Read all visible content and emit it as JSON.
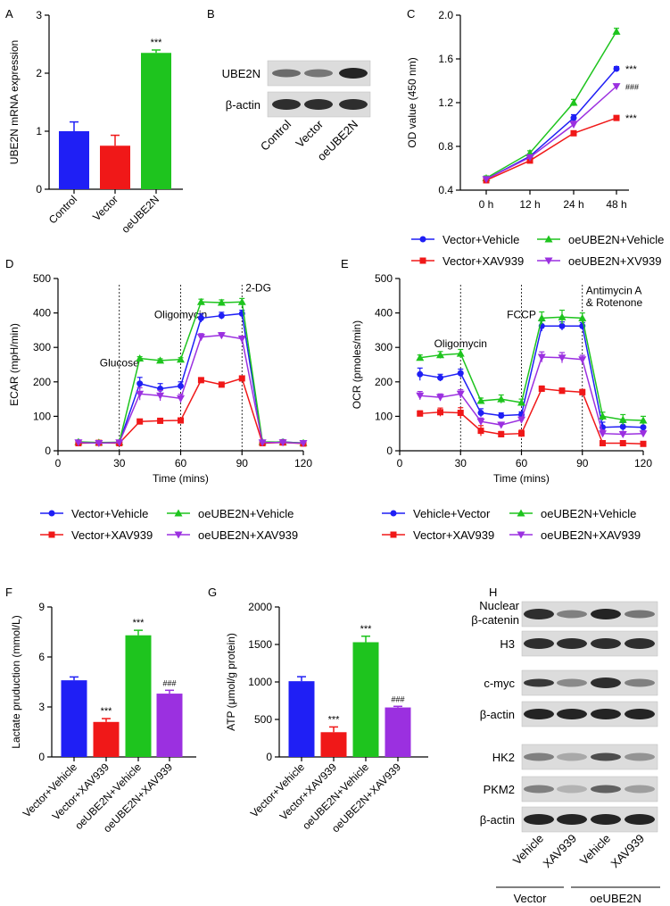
{
  "colors": {
    "blue": "#1f1ff5",
    "red": "#f01818",
    "green": "#1ec41e",
    "purple": "#9b30e0",
    "black": "#000000"
  },
  "panel_labels": {
    "A": "A",
    "B": "B",
    "C": "C",
    "D": "D",
    "E": "E",
    "F": "F",
    "G": "G",
    "H": "H"
  },
  "chart_data": [
    {
      "id": "A",
      "type": "bar",
      "title": "",
      "ylabel": "UBE2N mRNA expression",
      "ylim": [
        0,
        3
      ],
      "yticks": [
        0,
        1,
        2,
        3
      ],
      "categories": [
        "Control",
        "Vector",
        "oeUBE2N"
      ],
      "values": [
        1.0,
        0.75,
        2.35
      ],
      "errors": [
        0.16,
        0.18,
        0.05
      ],
      "colors": [
        "#1f1ff5",
        "#f01818",
        "#1ec41e"
      ],
      "sig": [
        "",
        "",
        "***"
      ]
    },
    {
      "id": "C",
      "type": "line",
      "title": "",
      "ylabel": "OD value (450 nm)",
      "ylim": [
        0.4,
        2.0
      ],
      "yticks": [
        0.4,
        0.8,
        1.2,
        1.6,
        2.0
      ],
      "yticklabels": [
        "0.4",
        "0.8",
        "1.2",
        "1.6",
        "2.0"
      ],
      "categories": [
        "0 h",
        "12 h",
        "24 h",
        "48 h"
      ],
      "series": [
        {
          "name": "Vector+Vehicle",
          "color": "#1f1ff5",
          "marker": "circle",
          "values": [
            0.5,
            0.71,
            1.06,
            1.51
          ],
          "errors": [
            0.02,
            0.02,
            0.03,
            0.02
          ]
        },
        {
          "name": "oeUBE2N+Vehicle",
          "color": "#1ec41e",
          "marker": "triangle-up",
          "values": [
            0.51,
            0.74,
            1.2,
            1.85
          ],
          "errors": [
            0.02,
            0.02,
            0.03,
            0.03
          ]
        },
        {
          "name": "Vector+XAV939",
          "color": "#f01818",
          "marker": "square",
          "values": [
            0.49,
            0.67,
            0.92,
            1.06
          ],
          "errors": [
            0.02,
            0.02,
            0.02,
            0.02
          ]
        },
        {
          "name": "oeUBE2N+XV939",
          "color": "#9b30e0",
          "marker": "triangle-down",
          "values": [
            0.5,
            0.7,
            1.0,
            1.35
          ],
          "errors": [
            0.02,
            0.02,
            0.03,
            0.02
          ]
        }
      ],
      "end_annotations": [
        "***",
        "",
        "***",
        "###"
      ]
    },
    {
      "id": "D",
      "type": "line",
      "title": "",
      "xlabel": "Time (mins)",
      "ylabel": "ECAR (mpH/min)",
      "xlim": [
        0,
        120
      ],
      "xticks": [
        0,
        30,
        60,
        90,
        120
      ],
      "ylim": [
        0,
        500
      ],
      "yticks": [
        0,
        100,
        200,
        300,
        400,
        500
      ],
      "x": [
        10,
        20,
        30,
        40,
        50,
        60,
        70,
        80,
        90,
        100,
        110,
        120
      ],
      "vlines": [
        30,
        60,
        90
      ],
      "annotations": [
        {
          "text": "Glucose",
          "x": 30,
          "y": 245
        },
        {
          "text": "Oligomycin",
          "x": 60,
          "y": 385
        },
        {
          "text": "2-DG",
          "x": 90,
          "y": 462
        }
      ],
      "series": [
        {
          "name": "Vector+Vehicle",
          "color": "#1f1ff5",
          "marker": "circle",
          "values": [
            25,
            23,
            24,
            195,
            180,
            188,
            385,
            392,
            398,
            24,
            26,
            22
          ],
          "errors": [
            3,
            3,
            3,
            18,
            15,
            12,
            12,
            10,
            10,
            3,
            3,
            3
          ]
        },
        {
          "name": "oeUBE2N+Vehicle",
          "color": "#1ec41e",
          "marker": "triangle-up",
          "values": [
            26,
            24,
            25,
            268,
            262,
            265,
            432,
            430,
            432,
            26,
            25,
            23
          ],
          "errors": [
            3,
            3,
            3,
            5,
            5,
            5,
            8,
            8,
            10,
            3,
            3,
            3
          ]
        },
        {
          "name": "Vector+XAV939",
          "color": "#f01818",
          "marker": "square",
          "values": [
            22,
            23,
            22,
            85,
            87,
            88,
            205,
            192,
            210,
            22,
            24,
            21
          ],
          "errors": [
            3,
            3,
            3,
            6,
            6,
            5,
            5,
            5,
            5,
            3,
            3,
            3
          ]
        },
        {
          "name": "oeUBE2N+XAV939",
          "color": "#9b30e0",
          "marker": "triangle-down",
          "values": [
            24,
            22,
            24,
            165,
            160,
            152,
            330,
            335,
            325,
            24,
            24,
            22
          ],
          "errors": [
            3,
            3,
            3,
            18,
            15,
            12,
            10,
            8,
            8,
            3,
            3,
            3
          ]
        }
      ]
    },
    {
      "id": "E",
      "type": "line",
      "title": "",
      "xlabel": "Time (mins)",
      "ylabel": "OCR (pmoles/min)",
      "xlim": [
        0,
        120
      ],
      "xticks": [
        0,
        30,
        60,
        90,
        120
      ],
      "ylim": [
        0,
        500
      ],
      "yticks": [
        0,
        100,
        200,
        300,
        400,
        500
      ],
      "x": [
        10,
        20,
        30,
        40,
        50,
        60,
        70,
        80,
        90,
        100,
        110,
        120
      ],
      "vlines": [
        30,
        60,
        90
      ],
      "annotations": [
        {
          "text": "Oligomycin",
          "x": 30,
          "y": 300
        },
        {
          "text": "FCCP",
          "x": 60,
          "y": 385
        },
        {
          "text": "Antimycin A",
          "x": 90,
          "y": 455
        },
        {
          "text": "& Rotenone",
          "x": 90,
          "y": 420
        }
      ],
      "series": [
        {
          "name": "Vehicle+Vector",
          "color": "#1f1ff5",
          "marker": "circle",
          "values": [
            222,
            212,
            225,
            110,
            102,
            105,
            362,
            362,
            362,
            68,
            70,
            68
          ],
          "errors": [
            18,
            10,
            12,
            12,
            8,
            8,
            15,
            12,
            10,
            15,
            12,
            15
          ]
        },
        {
          "name": "oeUBE2N+Vehicle",
          "color": "#1ec41e",
          "marker": "triangle-up",
          "values": [
            270,
            278,
            282,
            145,
            150,
            140,
            385,
            388,
            385,
            100,
            90,
            88
          ],
          "errors": [
            8,
            10,
            12,
            8,
            12,
            10,
            18,
            20,
            15,
            12,
            15,
            12
          ]
        },
        {
          "name": "Vector+XAV939",
          "color": "#f01818",
          "marker": "square",
          "values": [
            108,
            112,
            110,
            58,
            48,
            50,
            180,
            174,
            170,
            22,
            22,
            20
          ],
          "errors": [
            8,
            12,
            15,
            15,
            8,
            10,
            8,
            8,
            8,
            5,
            5,
            5
          ]
        },
        {
          "name": "oeUBE2N+XAV939",
          "color": "#9b30e0",
          "marker": "triangle-down",
          "values": [
            160,
            155,
            165,
            85,
            75,
            90,
            272,
            270,
            265,
            50,
            48,
            50
          ],
          "errors": [
            12,
            10,
            12,
            10,
            8,
            8,
            15,
            15,
            12,
            10,
            8,
            8
          ]
        }
      ]
    },
    {
      "id": "F",
      "type": "bar",
      "title": "",
      "ylabel": "Lactate pruduction (mmol/L)",
      "ylim": [
        0,
        9
      ],
      "yticks": [
        0,
        3,
        6,
        9
      ],
      "categories": [
        "Vector+Vehicle",
        "Vector+XAV939",
        "oeUBE2N+Vehicle",
        "oeUBE2N+XAV939"
      ],
      "values": [
        4.6,
        2.1,
        7.3,
        3.8
      ],
      "errors": [
        0.2,
        0.2,
        0.3,
        0.2
      ],
      "colors": [
        "#1f1ff5",
        "#f01818",
        "#1ec41e",
        "#9b30e0"
      ],
      "sig": [
        "",
        "***",
        "***",
        "###"
      ]
    },
    {
      "id": "G",
      "type": "bar",
      "title": "",
      "ylabel": "ATP (μmol/g protein)",
      "ylim": [
        0,
        2000
      ],
      "yticks": [
        0,
        500,
        1000,
        1500,
        2000
      ],
      "categories": [
        "Vector+Vehicle",
        "Vector+XAV939",
        "oeUBE2N+Vehicle",
        "oeUBE2N+XAV939"
      ],
      "values": [
        1010,
        330,
        1530,
        660
      ],
      "errors": [
        60,
        70,
        80,
        15
      ],
      "colors": [
        "#1f1ff5",
        "#f01818",
        "#1ec41e",
        "#9b30e0"
      ],
      "sig": [
        "",
        "***",
        "***",
        "###"
      ]
    }
  ],
  "legends": {
    "C": [
      "Vector+Vehicle",
      "oeUBE2N+Vehicle",
      "Vector+XAV939",
      "oeUBE2N+XV939"
    ],
    "D": [
      "Vector+Vehicle",
      "oeUBE2N+Vehicle",
      "Vector+XAV939",
      "oeUBE2N+XAV939"
    ],
    "E": [
      "Vehicle+Vector",
      "oeUBE2N+Vehicle",
      "Vector+XAV939",
      "oeUBE2N+XAV939"
    ]
  },
  "blot_B": {
    "rows": [
      "UBE2N",
      "β-actin"
    ],
    "lanes": [
      "Control",
      "Vector",
      "oeUBE2N"
    ],
    "intensity": [
      [
        0.55,
        0.5,
        0.9
      ],
      [
        0.85,
        0.85,
        0.85
      ]
    ]
  },
  "blot_H": {
    "rows": [
      {
        "label": "Nuclear β-catenin",
        "line1": "Nuclear",
        "line2": "β-catenin",
        "intensity": [
          0.85,
          0.45,
          0.9,
          0.5
        ]
      },
      {
        "label": "H3",
        "line1": "H3",
        "line2": "",
        "intensity": [
          0.85,
          0.85,
          0.85,
          0.85
        ]
      },
      {
        "label": "c-myc",
        "line1": "c-myc",
        "line2": "",
        "intensity": [
          0.8,
          0.4,
          0.85,
          0.45
        ]
      },
      {
        "label": "β-actin",
        "line1": "β-actin",
        "line2": "",
        "intensity": [
          0.9,
          0.9,
          0.9,
          0.9
        ]
      },
      {
        "label": "HK2",
        "line1": "HK2",
        "line2": "",
        "intensity": [
          0.45,
          0.25,
          0.7,
          0.35
        ]
      },
      {
        "label": "PKM2",
        "line1": "PKM2",
        "line2": "",
        "intensity": [
          0.45,
          0.2,
          0.6,
          0.3
        ]
      },
      {
        "label": "β-actin",
        "line1": "β-actin",
        "line2": "",
        "intensity": [
          0.9,
          0.9,
          0.9,
          0.9
        ]
      }
    ],
    "lanes": [
      "Vehicle",
      "XAV939",
      "Vehicle",
      "XAV939"
    ],
    "groups": [
      "Vector",
      "oeUBE2N"
    ]
  }
}
